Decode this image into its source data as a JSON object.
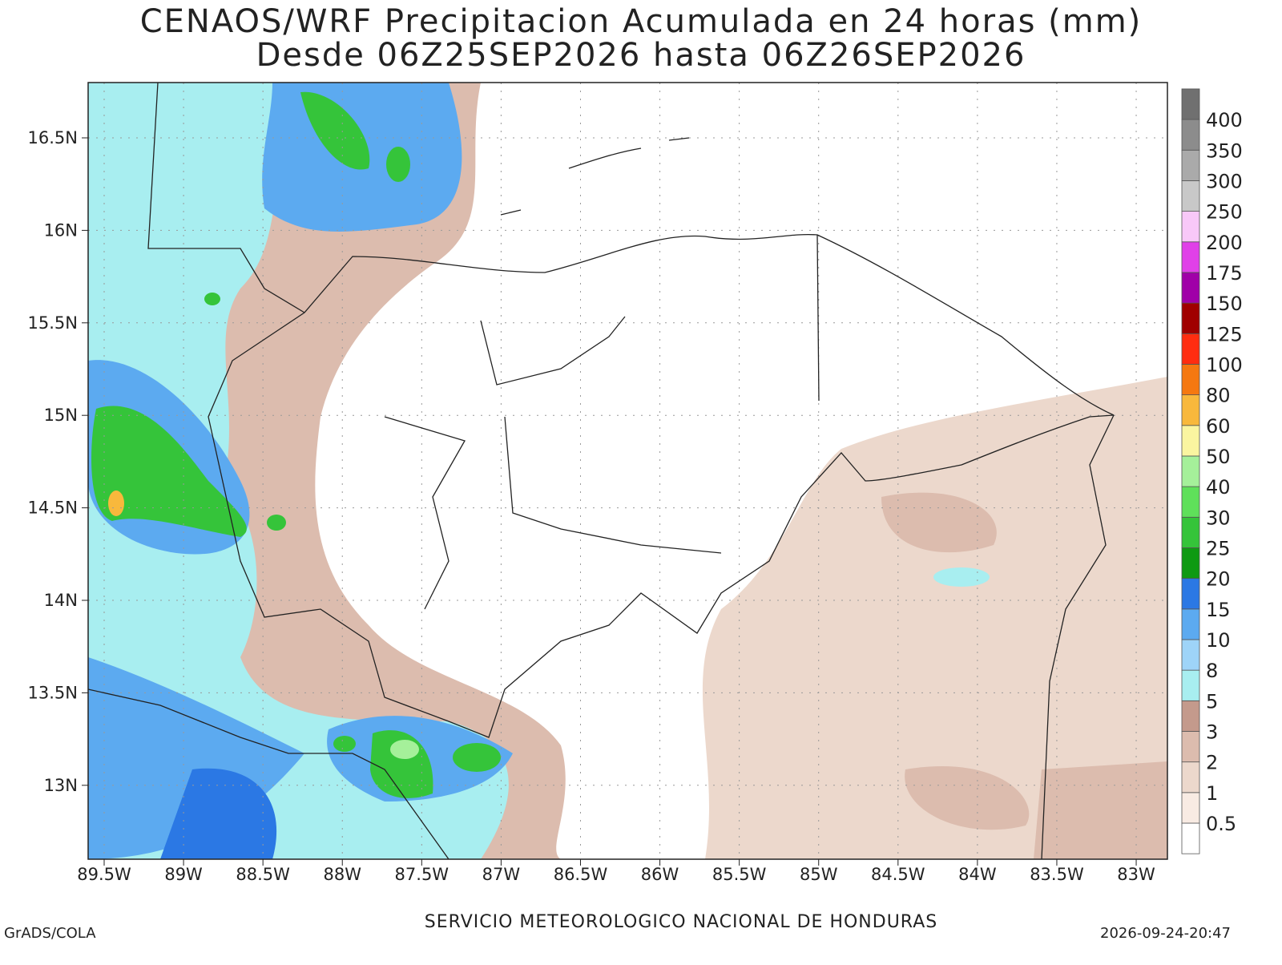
{
  "header": {
    "title": "CENAOS/WRF Precipitacion Acumulada en 24 horas (mm)",
    "subtitle": "Desde 06Z25SEP2026 hasta 06Z26SEP2026"
  },
  "map": {
    "lon_labels": [
      "89.5W",
      "89W",
      "88.5W",
      "88W",
      "87.5W",
      "87W",
      "86.5W",
      "86W",
      "85.5W",
      "85W",
      "84.5W",
      "84W",
      "83.5W",
      "83W"
    ],
    "lat_labels": [
      "16.5N",
      "16N",
      "15.5N",
      "15N",
      "14.5N",
      "14N",
      "13.5N",
      "13N"
    ],
    "grid": true
  },
  "colorbar": {
    "labels": [
      0.5,
      1,
      2,
      3,
      5,
      8,
      10,
      15,
      20,
      25,
      30,
      40,
      50,
      60,
      80,
      100,
      125,
      150,
      175,
      200,
      250,
      300,
      350,
      400
    ],
    "colors": [
      "#ffffff",
      "#f8ebe3",
      "#ecd8cc",
      "#dcbcae",
      "#c49a8c",
      "#a8eef0",
      "#9ed4f8",
      "#5caaf0",
      "#2b78e4",
      "#0e9a12",
      "#35c43a",
      "#5fe05a",
      "#a5f09a",
      "#faf5a0",
      "#f8b83c",
      "#f57810",
      "#ff2d10",
      "#a00000",
      "#a000a8",
      "#e040e8",
      "#f8c8f8",
      "#c8c8c8",
      "#aaaaaa",
      "#8c8c8c",
      "#707070"
    ]
  },
  "footer": {
    "center": "SERVICIO METEOROLOGICO NACIONAL DE HONDURAS",
    "left": "GrADS/COLA",
    "right": "2026-09-24-20:47"
  }
}
